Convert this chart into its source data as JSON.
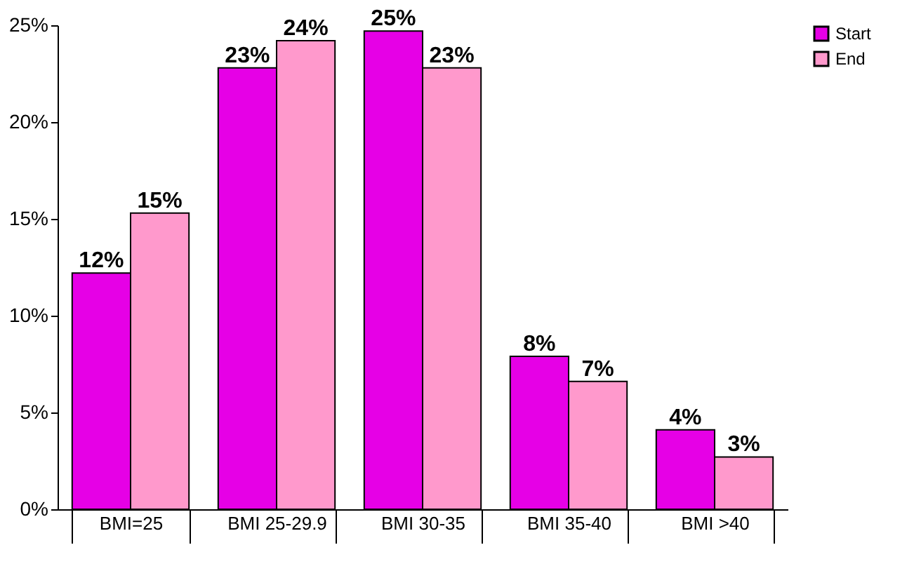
{
  "chart_data": {
    "type": "bar",
    "categories": [
      "BMI=25",
      "BMI 25-29.9",
      "BMI 30-35",
      "BMI 35-40",
      "BMI >40"
    ],
    "series": [
      {
        "name": "Start",
        "color": "#e600e6",
        "values": [
          12.2,
          22.8,
          24.7,
          7.9,
          4.1
        ],
        "value_labels": [
          "12%",
          "23%",
          "25%",
          "8%",
          "4%"
        ]
      },
      {
        "name": "End",
        "color": "#ff99cc",
        "values": [
          15.3,
          24.2,
          22.8,
          6.6,
          2.7
        ],
        "value_labels": [
          "15%",
          "24%",
          "23%",
          "7%",
          "3%"
        ]
      }
    ],
    "ylim": [
      0,
      25
    ],
    "yticks": [
      {
        "value": 0,
        "label": "0%"
      },
      {
        "value": 5,
        "label": "5%"
      },
      {
        "value": 10,
        "label": "10%"
      },
      {
        "value": 15,
        "label": "15%"
      },
      {
        "value": 20,
        "label": "20%"
      },
      {
        "value": 25,
        "label": "25%"
      }
    ],
    "grid": false,
    "legend": "right"
  }
}
